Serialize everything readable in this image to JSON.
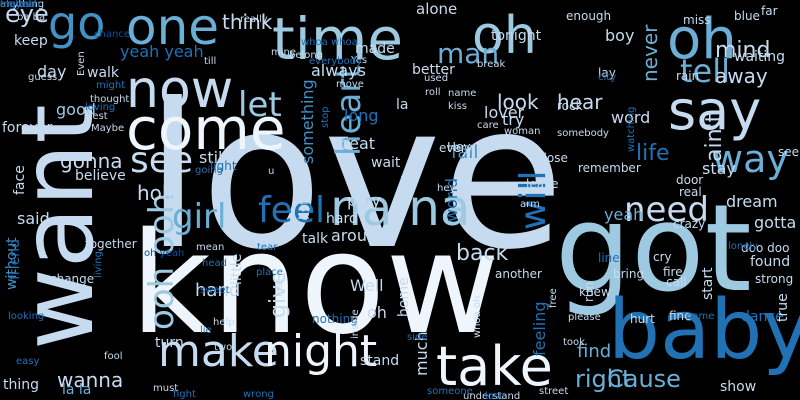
{
  "palette": {
    "background": "#000000",
    "c1": "#eef5fd",
    "c2": "#c6dbef",
    "c3": "#9ecae1",
    "c4": "#6baed6",
    "c5": "#4292c6",
    "c6": "#2171b5",
    "c7": "#08519c"
  },
  "words": [
    {
      "text": "love",
      "color": "c2"
    },
    {
      "text": "know",
      "color": "c1"
    },
    {
      "text": "got",
      "color": "c3"
    },
    {
      "text": "want",
      "color": "c2"
    },
    {
      "text": "baby",
      "color": "c6"
    },
    {
      "text": "one",
      "color": "c4"
    },
    {
      "text": "time",
      "color": "c3"
    },
    {
      "text": "oh",
      "color": "c3"
    },
    {
      "text": "oh",
      "color": "c4"
    },
    {
      "text": "now",
      "color": "c2"
    },
    {
      "text": "come",
      "color": "c1"
    },
    {
      "text": "say",
      "color": "c2"
    },
    {
      "text": "make",
      "color": "c2"
    },
    {
      "text": "night",
      "color": "c1"
    },
    {
      "text": "take",
      "color": "c1"
    },
    {
      "text": "na na",
      "color": "c3"
    },
    {
      "text": "go",
      "color": "c5"
    },
    {
      "text": "tell",
      "color": "c4"
    },
    {
      "text": "way",
      "color": "c4"
    },
    {
      "text": "see",
      "color": "c2"
    },
    {
      "text": "let",
      "color": "c3"
    },
    {
      "text": "feel",
      "color": "c6"
    },
    {
      "text": "girl",
      "color": "c4"
    },
    {
      "text": "heart",
      "color": "c4"
    },
    {
      "text": "need",
      "color": "c2"
    },
    {
      "text": "ooh ooh",
      "color": "c3"
    },
    {
      "text": "will",
      "color": "c6"
    },
    {
      "text": "eye",
      "color": "c2"
    },
    {
      "text": "think",
      "color": "c2"
    },
    {
      "text": "mind",
      "color": "c2"
    },
    {
      "text": "away",
      "color": "c2"
    },
    {
      "text": "man",
      "color": "c4"
    },
    {
      "text": "look",
      "color": "c2"
    },
    {
      "text": "hear",
      "color": "c2"
    },
    {
      "text": "never",
      "color": "c4"
    },
    {
      "text": "life",
      "color": "c6"
    },
    {
      "text": "ain't",
      "color": "c2"
    },
    {
      "text": "Cause",
      "color": "c4"
    },
    {
      "text": "right",
      "color": "c4"
    },
    {
      "text": "find",
      "color": "c4"
    },
    {
      "text": "wanna",
      "color": "c2"
    },
    {
      "text": "gonna",
      "color": "c2"
    },
    {
      "text": "hold",
      "color": "c2"
    },
    {
      "text": "hand",
      "color": "c2"
    },
    {
      "text": "give",
      "color": "c2"
    },
    {
      "text": "back",
      "color": "c2"
    },
    {
      "text": "yeah yeah",
      "color": "c6"
    },
    {
      "text": "something",
      "color": "c5"
    },
    {
      "text": "still",
      "color": "c2"
    },
    {
      "text": "said",
      "color": "c2"
    },
    {
      "text": "good",
      "color": "c3"
    },
    {
      "text": "day",
      "color": "c2"
    },
    {
      "text": "keep",
      "color": "c2"
    },
    {
      "text": "walk",
      "color": "c2"
    },
    {
      "text": "always",
      "color": "c2"
    },
    {
      "text": "alone",
      "color": "c2"
    },
    {
      "text": "tonight",
      "color": "c2"
    },
    {
      "text": "boy",
      "color": "c2"
    },
    {
      "text": "better",
      "color": "c2"
    },
    {
      "text": "lover",
      "color": "c2"
    },
    {
      "text": "try",
      "color": "c2"
    },
    {
      "text": "long",
      "color": "c6"
    },
    {
      "text": "beat",
      "color": "c2"
    },
    {
      "text": "wait",
      "color": "c2"
    },
    {
      "text": "fall",
      "color": "c5"
    },
    {
      "text": "world",
      "color": "c6"
    },
    {
      "text": "word",
      "color": "c2"
    },
    {
      "text": "stay",
      "color": "c2"
    },
    {
      "text": "dream",
      "color": "c2"
    },
    {
      "text": "gotta",
      "color": "c2"
    },
    {
      "text": "yeah",
      "color": "c4"
    },
    {
      "text": "play",
      "color": "c2"
    },
    {
      "text": "hard",
      "color": "c2"
    },
    {
      "text": "around",
      "color": "c2"
    },
    {
      "text": "live",
      "color": "c2"
    },
    {
      "text": "touch",
      "color": "c2"
    },
    {
      "text": "talk",
      "color": "c2"
    },
    {
      "text": "Well",
      "color": "c2"
    },
    {
      "text": "oh",
      "color": "c2"
    },
    {
      "text": "feeling",
      "color": "c6"
    },
    {
      "text": "home",
      "color": "c2"
    },
    {
      "text": "much",
      "color": "c2"
    },
    {
      "text": "stand",
      "color": "c2"
    },
    {
      "text": "show",
      "color": "c2"
    },
    {
      "text": "dance",
      "color": "c6"
    },
    {
      "text": "found",
      "color": "c2"
    },
    {
      "text": "start",
      "color": "c2"
    },
    {
      "text": "true",
      "color": "c2"
    },
    {
      "text": "forever",
      "color": "c2"
    },
    {
      "text": "face",
      "color": "c2"
    },
    {
      "text": "believe",
      "color": "c2"
    },
    {
      "text": "without",
      "color": "c5"
    },
    {
      "text": "friend",
      "color": "c6"
    },
    {
      "text": "thing",
      "color": "c2"
    },
    {
      "text": "la la",
      "color": "c4"
    },
    {
      "text": "turn",
      "color": "c2"
    },
    {
      "text": "little",
      "color": "c2"
    },
    {
      "text": "listen",
      "color": "c2"
    },
    {
      "text": "waiting",
      "color": "c2"
    },
    {
      "text": "la",
      "color": "c2"
    },
    {
      "text": "made",
      "color": "c2"
    },
    {
      "text": "gone",
      "color": "c2"
    },
    {
      "text": "light",
      "color": "c6"
    },
    {
      "text": "nothing",
      "color": "c6"
    },
    {
      "text": "together",
      "color": "c2"
    },
    {
      "text": "change",
      "color": "c2"
    },
    {
      "text": "call",
      "color": "c2"
    },
    {
      "text": "cry",
      "color": "c2"
    },
    {
      "text": "fire",
      "color": "c2"
    },
    {
      "text": "bring",
      "color": "c2"
    },
    {
      "text": "line",
      "color": "c6"
    },
    {
      "text": "run",
      "color": "c2"
    },
    {
      "text": "hurt",
      "color": "c2"
    },
    {
      "text": "fine",
      "color": "c2"
    },
    {
      "text": "knew",
      "color": "c2"
    },
    {
      "text": "leave",
      "color": "c2"
    },
    {
      "text": "remember",
      "color": "c2"
    },
    {
      "text": "another",
      "color": "c2"
    },
    {
      "text": "close",
      "color": "c2"
    },
    {
      "text": "rock",
      "color": "c2"
    },
    {
      "text": "every",
      "color": "c2"
    },
    {
      "text": "Hey",
      "color": "c2"
    },
    {
      "text": "crazy",
      "color": "c2"
    },
    {
      "text": "real",
      "color": "c2"
    },
    {
      "text": "door",
      "color": "c2"
    },
    {
      "text": "doo doo",
      "color": "c2"
    },
    {
      "text": "strong",
      "color": "c2"
    },
    {
      "text": "seem",
      "color": "c2"
    },
    {
      "text": "rain",
      "color": "c2"
    },
    {
      "text": "lay",
      "color": "c2"
    },
    {
      "text": "miss",
      "color": "c2"
    },
    {
      "text": "blue",
      "color": "c2"
    },
    {
      "text": "far",
      "color": "c2"
    },
    {
      "text": "enough",
      "color": "c2"
    },
    {
      "text": "ba ba",
      "color": "c2"
    },
    {
      "text": "chance",
      "color": "c7"
    },
    {
      "text": "really",
      "color": "c2"
    },
    {
      "text": "till",
      "color": "c2"
    },
    {
      "text": "whoa whoa",
      "color": "c6"
    },
    {
      "text": "might",
      "color": "c6"
    },
    {
      "text": "thought",
      "color": "c2"
    },
    {
      "text": "best",
      "color": "c2"
    },
    {
      "text": "Maybe",
      "color": "c2"
    },
    {
      "text": "guess",
      "color": "c2"
    },
    {
      "text": "Even",
      "color": "c2"
    },
    {
      "text": "loving",
      "color": "c6"
    },
    {
      "text": "going",
      "color": "c6"
    },
    {
      "text": "u",
      "color": "c2"
    },
    {
      "text": "mean",
      "color": "c2"
    },
    {
      "text": "oh yeah",
      "color": "c7"
    },
    {
      "text": "head",
      "color": "c6"
    },
    {
      "text": "place",
      "color": "c6"
    },
    {
      "text": "sweet",
      "color": "c6"
    },
    {
      "text": "tear",
      "color": "c6"
    },
    {
      "text": "living",
      "color": "c6"
    },
    {
      "text": "looking",
      "color": "c6"
    },
    {
      "text": "lie",
      "color": "c6"
    },
    {
      "text": "help",
      "color": "c2"
    },
    {
      "text": "easy",
      "color": "c6"
    },
    {
      "text": "fool",
      "color": "c2"
    },
    {
      "text": "two",
      "color": "c2"
    },
    {
      "text": "last",
      "color": "c2"
    },
    {
      "text": "must",
      "color": "c2"
    },
    {
      "text": "fight",
      "color": "c6"
    },
    {
      "text": "wrong",
      "color": "c6"
    },
    {
      "text": "someone",
      "color": "c6"
    },
    {
      "text": "understand",
      "color": "c2"
    },
    {
      "text": "lost",
      "color": "c6"
    },
    {
      "text": "street",
      "color": "c2"
    },
    {
      "text": "side",
      "color": "c6"
    },
    {
      "text": "inside",
      "color": "c2"
    },
    {
      "text": "whoa oh",
      "color": "c2"
    },
    {
      "text": "took",
      "color": "c2"
    },
    {
      "text": "please",
      "color": "c2"
    },
    {
      "text": "lonely",
      "color": "c6"
    },
    {
      "text": "free",
      "color": "c2"
    },
    {
      "text": "game",
      "color": "c6"
    },
    {
      "text": "hey hey",
      "color": "c2"
    },
    {
      "text": "arm",
      "color": "c2"
    },
    {
      "text": "watching",
      "color": "c6"
    },
    {
      "text": "somebody",
      "color": "c2"
    },
    {
      "text": "woman",
      "color": "c2"
    },
    {
      "text": "care",
      "color": "c2"
    },
    {
      "text": "kiss",
      "color": "c2"
    },
    {
      "text": "name",
      "color": "c2"
    },
    {
      "text": "roll",
      "color": "c2"
    },
    {
      "text": "city",
      "color": "c6"
    },
    {
      "text": "used",
      "color": "c2"
    },
    {
      "text": "move",
      "color": "c2"
    },
    {
      "text": "break",
      "color": "c2"
    },
    {
      "text": "stop",
      "color": "c6"
    },
    {
      "text": "Yes",
      "color": "c2"
    },
    {
      "text": "everybody",
      "color": "c6"
    },
    {
      "text": "belong",
      "color": "c2"
    },
    {
      "text": "mine",
      "color": "c2"
    },
    {
      "text": "anything",
      "color": "c2"
    },
    {
      "text": "ma ma",
      "color": "c6"
    },
    {
      "text": "oh yeah",
      "color": "c6"
    },
    {
      "text": "high",
      "color": "c6"
    },
    {
      "text": "mama",
      "color": "c6"
    }
  ]
}
